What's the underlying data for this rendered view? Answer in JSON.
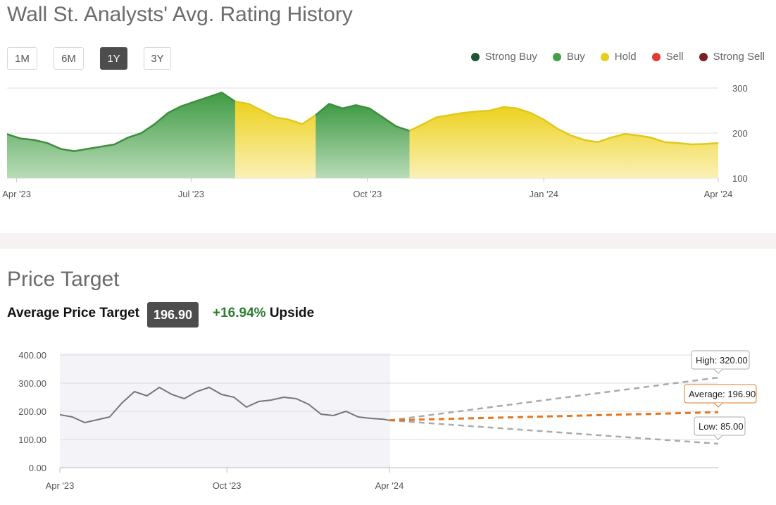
{
  "rating_history": {
    "title": "Wall St. Analysts' Avg. Rating History",
    "ranges": [
      "1M",
      "6M",
      "1Y",
      "3Y"
    ],
    "active_range": "1Y",
    "legend": [
      {
        "label": "Strong Buy",
        "color": "#1e5631"
      },
      {
        "label": "Buy",
        "color": "#43a047"
      },
      {
        "label": "Hold",
        "color": "#e6cf1c"
      },
      {
        "label": "Sell",
        "color": "#e53935"
      },
      {
        "label": "Strong Sell",
        "color": "#7b1f1f"
      }
    ]
  },
  "price_target": {
    "title": "Price Target",
    "avg_label": "Average Price Target",
    "avg_value": "196.90",
    "upside_pct": "+16.94%",
    "upside_label": "Upside",
    "high_label": "High: 320.00",
    "avg_callout": "Average: 196.90",
    "low_label": "Low: 85.00"
  },
  "chart_data": [
    {
      "type": "area",
      "title": "Wall St. Analysts' Avg. Rating History",
      "x_tick_labels": [
        "Apr '23",
        "Jul '23",
        "Oct '23",
        "Jan '24",
        "Apr '24"
      ],
      "y_tick_labels": [
        "300",
        "200",
        "100"
      ],
      "ylim": [
        100,
        300
      ],
      "x_start": "2023-03-27",
      "series": [
        {
          "dates": [
            "2023-03-27",
            "2023-03-29",
            "2023-04-03",
            "2023-04-10",
            "2023-04-17",
            "2023-04-24",
            "2023-05-01",
            "2023-05-08",
            "2023-05-15",
            "2023-05-22",
            "2023-05-29",
            "2023-06-05",
            "2023-06-12",
            "2023-06-19",
            "2023-06-26",
            "2023-07-03",
            "2023-07-10",
            "2023-07-17",
            "2023-07-24",
            "2023-07-31",
            "2023-08-07",
            "2023-08-14",
            "2023-08-21",
            "2023-08-28",
            "2023-09-04",
            "2023-09-11",
            "2023-09-18",
            "2023-09-25",
            "2023-10-02",
            "2023-10-09",
            "2023-10-16",
            "2023-10-23",
            "2023-10-30",
            "2023-11-06",
            "2023-11-13",
            "2023-11-20",
            "2023-11-27",
            "2023-12-04",
            "2023-12-11",
            "2023-12-18",
            "2023-12-25",
            "2024-01-01",
            "2024-01-08",
            "2024-01-15",
            "2024-01-22",
            "2024-01-29",
            "2024-02-05",
            "2024-02-12",
            "2024-02-19",
            "2024-02-26",
            "2024-03-04",
            "2024-03-11",
            "2024-03-18",
            "2024-03-25",
            "2024-04-01"
          ],
          "values": [
            198,
            195,
            188,
            185,
            178,
            165,
            160,
            165,
            170,
            175,
            190,
            200,
            220,
            245,
            260,
            270,
            280,
            290,
            270,
            265,
            250,
            235,
            230,
            220,
            240,
            265,
            255,
            262,
            255,
            235,
            215,
            205,
            220,
            235,
            240,
            245,
            248,
            250,
            258,
            255,
            245,
            230,
            210,
            195,
            185,
            180,
            190,
            198,
            195,
            190,
            180,
            178,
            175,
            176,
            178
          ],
          "rating": [
            "Buy",
            "Buy",
            "Buy",
            "Buy",
            "Buy",
            "Buy",
            "Buy",
            "Buy",
            "Buy",
            "Buy",
            "Buy",
            "Buy",
            "Buy",
            "Buy",
            "Buy",
            "Buy",
            "Buy",
            "Buy",
            "Hold",
            "Hold",
            "Hold",
            "Hold",
            "Hold",
            "Hold",
            "Buy",
            "Buy",
            "Buy",
            "Buy",
            "Buy",
            "Buy",
            "Buy",
            "Hold",
            "Hold",
            "Hold",
            "Hold",
            "Hold",
            "Hold",
            "Hold",
            "Hold",
            "Hold",
            "Hold",
            "Hold",
            "Hold",
            "Hold",
            "Hold",
            "Hold",
            "Hold",
            "Hold",
            "Hold",
            "Hold",
            "Hold",
            "Hold",
            "Hold",
            "Hold",
            "Hold"
          ]
        }
      ]
    },
    {
      "type": "line",
      "title": "Price Target",
      "x_tick_labels": [
        "Apr '23",
        "Oct '23",
        "Apr '24"
      ],
      "y_tick_labels": [
        "400.00",
        "300.00",
        "200.00",
        "100.00",
        "0.00"
      ],
      "ylim": [
        0,
        400
      ],
      "series": [
        {
          "name": "Price",
          "dates": [
            "2023-03-27",
            "2023-04-10",
            "2023-04-24",
            "2023-05-08",
            "2023-05-22",
            "2023-06-05",
            "2023-06-19",
            "2023-07-03",
            "2023-07-17",
            "2023-07-31",
            "2023-08-14",
            "2023-08-28",
            "2023-09-11",
            "2023-09-25",
            "2023-10-09",
            "2023-10-23",
            "2023-11-06",
            "2023-11-20",
            "2023-12-04",
            "2023-12-18",
            "2024-01-01",
            "2024-01-15",
            "2024-01-29",
            "2024-02-12",
            "2024-02-26",
            "2024-03-11",
            "2024-03-25",
            "2024-04-01"
          ],
          "values": [
            188,
            180,
            160,
            170,
            180,
            230,
            270,
            255,
            285,
            260,
            245,
            270,
            285,
            260,
            250,
            215,
            235,
            240,
            250,
            245,
            225,
            190,
            185,
            200,
            180,
            175,
            172,
            168
          ]
        },
        {
          "name": "High",
          "values": [
            168,
            320
          ]
        },
        {
          "name": "Average",
          "values": [
            168,
            196.9
          ]
        },
        {
          "name": "Low",
          "values": [
            168,
            85
          ]
        }
      ]
    }
  ]
}
